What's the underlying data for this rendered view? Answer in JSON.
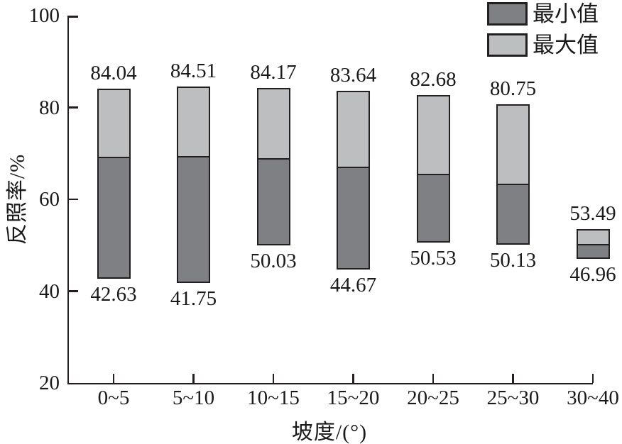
{
  "chart_data": {
    "type": "bar",
    "variant": "floating-range-bars",
    "title": "",
    "xlabel": "坡度/(°)",
    "ylabel": "反照率/%",
    "ylim": [
      20,
      100
    ],
    "yticks": [
      20,
      40,
      60,
      80,
      100
    ],
    "grid": false,
    "legend_position": "top-right",
    "categories": [
      "0~5",
      "5~10",
      "10~15",
      "15~20",
      "20~25",
      "25~30",
      "30~40"
    ],
    "series": [
      {
        "name": "最小值",
        "values": [
          42.63,
          41.75,
          50.03,
          44.67,
          50.53,
          50.13,
          46.96
        ]
      },
      {
        "name": "最大值",
        "values": [
          84.04,
          84.51,
          84.17,
          83.64,
          82.68,
          80.75,
          53.49
        ]
      }
    ],
    "segment_divider_estimates": [
      69.4,
      69.5,
      69.0,
      67.1,
      65.6,
      63.4,
      50.2
    ],
    "colors": {
      "min_fill": "#7f8083",
      "max_fill": "#bdbec0",
      "outline": "#231f20",
      "text": "#1a1a1a"
    }
  },
  "legend": {
    "items": [
      {
        "label": "最小值",
        "color": "#7f8083"
      },
      {
        "label": "最大值",
        "color": "#bdbec0"
      }
    ]
  }
}
